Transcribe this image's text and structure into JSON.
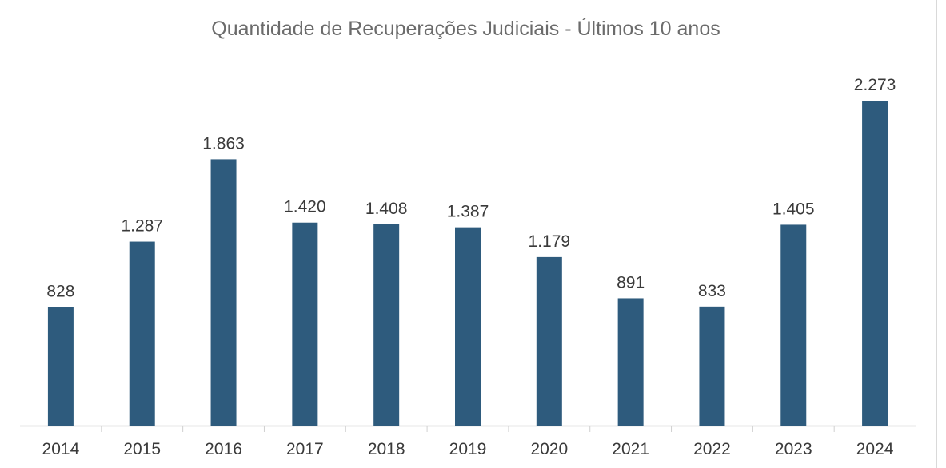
{
  "chart_data": {
    "type": "bar",
    "title": "Quantidade de Recuperações Judiciais - Últimos 10 anos",
    "xlabel": "",
    "ylabel": "",
    "categories": [
      "2014",
      "2015",
      "2016",
      "2017",
      "2018",
      "2019",
      "2020",
      "2021",
      "2022",
      "2023",
      "2024"
    ],
    "values": [
      828,
      1287,
      1863,
      1420,
      1408,
      1387,
      1179,
      891,
      833,
      1405,
      2273
    ],
    "value_labels": [
      "828",
      "1.287",
      "1.863",
      "1.420",
      "1.408",
      "1.387",
      "1.179",
      "891",
      "833",
      "1.405",
      "2.273"
    ],
    "ylim": [
      0,
      2500
    ],
    "grid": false,
    "legend": "none",
    "bar_color": "#2e5b7d",
    "axis_color": "#d0d0d0"
  }
}
